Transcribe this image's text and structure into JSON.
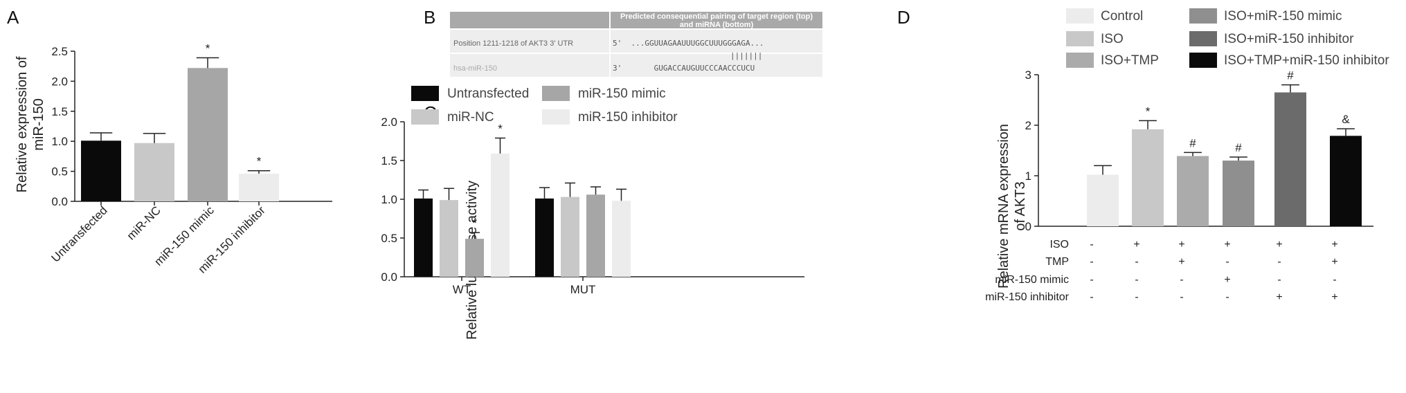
{
  "panels": {
    "A": "A",
    "B": "B",
    "C": "C",
    "D": "D"
  },
  "colors": {
    "black": "#0a0a0a",
    "light_gray": "#c8c8c8",
    "mid_gray": "#a6a6a6",
    "very_light_gray": "#ececec",
    "d_control": "#ececec",
    "d_iso": "#c8c8c8",
    "d_iso_tmp": "#ababab",
    "d_mimic": "#8f8f8f",
    "d_inhibitor": "#6b6b6b",
    "d_tmp_inhibitor": "#0a0a0a",
    "table_header": "#a9a9a9",
    "table_row": "#eeeeee"
  },
  "chart_data": [
    {
      "id": "A",
      "type": "bar",
      "categories": [
        "Untransfected",
        "miR-NC",
        "miR-150 mimic",
        "miR-150 inhibitor"
      ],
      "values": [
        1.01,
        0.97,
        2.22,
        0.46
      ],
      "errors": [
        0.13,
        0.16,
        0.17,
        0.05
      ],
      "markers": [
        "",
        "",
        "*",
        "*"
      ],
      "colors": [
        "#0a0a0a",
        "#c8c8c8",
        "#a6a6a6",
        "#ececec"
      ],
      "ylabel": "Relative expression of miR-150",
      "ylim": [
        0,
        2.5
      ],
      "yticks": [
        "0.0",
        "0.5",
        "1.0",
        "1.5",
        "2.0",
        "2.5"
      ],
      "grid": false
    },
    {
      "id": "C",
      "type": "bar",
      "categories": [
        "WT",
        "MUT"
      ],
      "series": [
        {
          "name": "Untransfected",
          "values": [
            1.01,
            1.01
          ],
          "errors": [
            0.11,
            0.14
          ],
          "color": "#0a0a0a"
        },
        {
          "name": "miR-NC",
          "values": [
            0.99,
            1.03
          ],
          "errors": [
            0.15,
            0.18
          ],
          "color": "#c8c8c8"
        },
        {
          "name": "miR-150 mimic",
          "values": [
            0.49,
            1.06
          ],
          "errors": [
            0.08,
            0.1
          ],
          "color": "#a6a6a6"
        },
        {
          "name": "miR-150 inhibitor",
          "values": [
            1.59,
            0.98
          ],
          "errors": [
            0.2,
            0.15
          ],
          "color": "#ececec"
        }
      ],
      "markers": [
        [
          "",
          "",
          "*",
          "*"
        ],
        [
          "",
          "",
          "",
          ""
        ]
      ],
      "ylabel": "Relative luciferase activity",
      "ylim": [
        0,
        2.0
      ],
      "yticks": [
        "0.0",
        "0.5",
        "1.0",
        "1.5",
        "2.0"
      ],
      "legend": "top",
      "grid": false
    },
    {
      "id": "D",
      "type": "bar",
      "categories": [
        "Control",
        "ISO",
        "ISO+TMP",
        "ISO+miR-150 mimic",
        "ISO+miR-150 inhibitor",
        "ISO+TMP+miR-150 inhibitor"
      ],
      "values": [
        1.02,
        1.92,
        1.39,
        1.3,
        2.65,
        1.79
      ],
      "errors": [
        0.18,
        0.17,
        0.07,
        0.07,
        0.15,
        0.14
      ],
      "markers": [
        "",
        "*",
        "#",
        "#",
        "#",
        "&"
      ],
      "colors": [
        "#ececec",
        "#c8c8c8",
        "#ababab",
        "#8f8f8f",
        "#6b6b6b",
        "#0a0a0a"
      ],
      "ylabel": "Relative mRNA expression of AKT3",
      "ylim": [
        0,
        3
      ],
      "yticks": [
        "0",
        "1",
        "2",
        "3"
      ],
      "legend": "top",
      "grid": false,
      "treatment_table": {
        "rows": [
          {
            "label": "ISO",
            "values": [
              "-",
              "+",
              "+",
              "+",
              "+",
              "+"
            ]
          },
          {
            "label": "TMP",
            "values": [
              "-",
              "-",
              "+",
              "-",
              "-",
              "+"
            ]
          },
          {
            "label": "miR-150 mimic",
            "values": [
              "-",
              "-",
              "-",
              "+",
              "-",
              "-"
            ]
          },
          {
            "label": "miR-150 inhibitor",
            "values": [
              "-",
              "-",
              "-",
              "-",
              "+",
              "+"
            ]
          }
        ]
      }
    }
  ],
  "panel_b": {
    "header": "Predicted consequential pairing of target region (top) and miRNA (bottom)",
    "header_line1": "Predicted consequential pairing of target region (top)",
    "header_line2": "and miRNA (bottom)",
    "row1_label": "Position 1211-1218 of AKT3 3' UTR",
    "row1_seq": "5'  ...GGUUAGAAUUUGGCUUUGGGAGA...",
    "pairing": "|||||||",
    "row2_label": "hsa-miR-150",
    "row2_seq": "3'       GUGACCAUGUUCCCAACCCUCU"
  }
}
